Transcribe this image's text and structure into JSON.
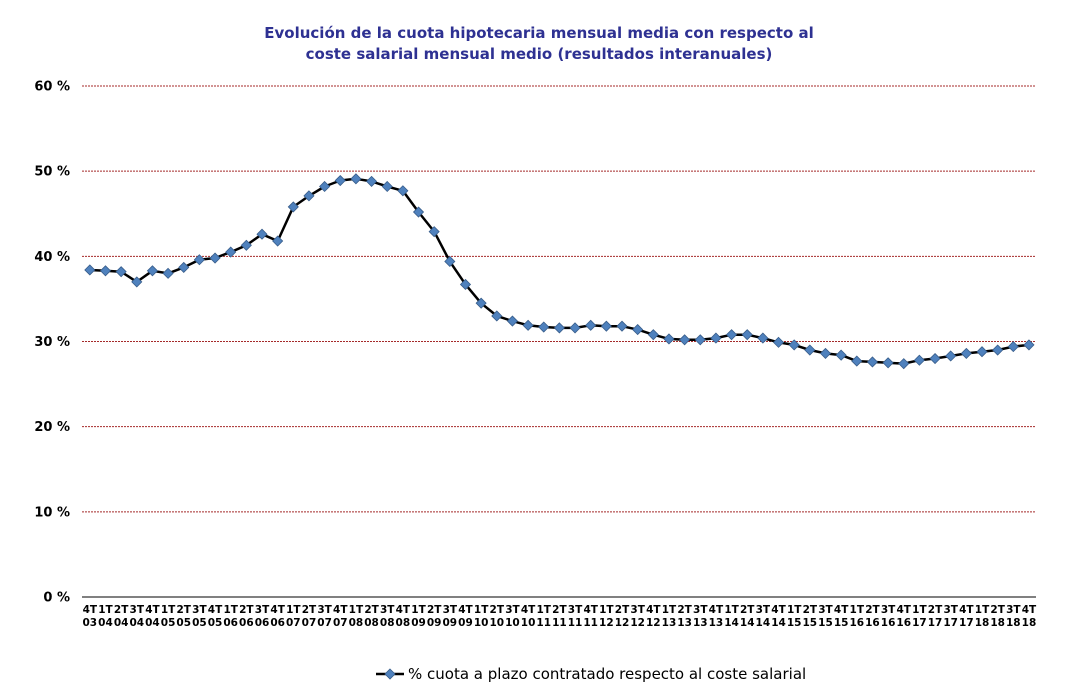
{
  "chart_data": {
    "type": "line",
    "title_lines": [
      "Evolución de la cuota hipotecaria mensual media con respecto al",
      "coste salarial mensual medio (resultados interanuales)"
    ],
    "xlabel": "",
    "ylabel": "",
    "ylim": [
      0,
      60
    ],
    "yticks": [
      0,
      10,
      20,
      30,
      40,
      50,
      60
    ],
    "ytick_labels": [
      "0 %",
      "10 %",
      "20 %",
      "30 %",
      "40 %",
      "50 %",
      "60 %"
    ],
    "grid": "horizontal dashed",
    "legend_position": "bottom",
    "categories": [
      [
        "4T",
        "03"
      ],
      [
        "1T",
        "04"
      ],
      [
        "2T",
        "04"
      ],
      [
        "3T",
        "04"
      ],
      [
        "4T",
        "04"
      ],
      [
        "1T",
        "05"
      ],
      [
        "2T",
        "05"
      ],
      [
        "3T",
        "05"
      ],
      [
        "4T",
        "05"
      ],
      [
        "1T",
        "06"
      ],
      [
        "2T",
        "06"
      ],
      [
        "3T",
        "06"
      ],
      [
        "4T",
        "06"
      ],
      [
        "1T",
        "07"
      ],
      [
        "2T",
        "07"
      ],
      [
        "3T",
        "07"
      ],
      [
        "4T",
        "07"
      ],
      [
        "1T",
        "08"
      ],
      [
        "2T",
        "08"
      ],
      [
        "3T",
        "08"
      ],
      [
        "4T",
        "08"
      ],
      [
        "1T",
        "09"
      ],
      [
        "2T",
        "09"
      ],
      [
        "3T",
        "09"
      ],
      [
        "4T",
        "09"
      ],
      [
        "1T",
        "10"
      ],
      [
        "2T",
        "10"
      ],
      [
        "3T",
        "10"
      ],
      [
        "4T",
        "10"
      ],
      [
        "1T",
        "11"
      ],
      [
        "2T",
        "11"
      ],
      [
        "3T",
        "11"
      ],
      [
        "4T",
        "11"
      ],
      [
        "1T",
        "12"
      ],
      [
        "2T",
        "12"
      ],
      [
        "3T",
        "12"
      ],
      [
        "4T",
        "12"
      ],
      [
        "1T",
        "13"
      ],
      [
        "2T",
        "13"
      ],
      [
        "3T",
        "13"
      ],
      [
        "4T",
        "13"
      ],
      [
        "1T",
        "14"
      ],
      [
        "2T",
        "14"
      ],
      [
        "3T",
        "14"
      ],
      [
        "4T",
        "14"
      ],
      [
        "1T",
        "15"
      ],
      [
        "2T",
        "15"
      ],
      [
        "3T",
        "15"
      ],
      [
        "4T",
        "15"
      ],
      [
        "1T",
        "16"
      ],
      [
        "2T",
        "16"
      ],
      [
        "3T",
        "16"
      ],
      [
        "4T",
        "16"
      ],
      [
        "1T",
        "17"
      ],
      [
        "2T",
        "17"
      ],
      [
        "3T",
        "17"
      ],
      [
        "4T",
        "17"
      ],
      [
        "1T",
        "18"
      ],
      [
        "2T",
        "18"
      ],
      [
        "3T",
        "18"
      ],
      [
        "4T",
        "18"
      ]
    ],
    "series": [
      {
        "name": "% cuota a plazo contratado respecto al coste salarial",
        "values": [
          38.4,
          38.3,
          38.2,
          37.0,
          38.3,
          38.0,
          38.7,
          39.6,
          39.8,
          40.5,
          41.3,
          42.6,
          41.8,
          45.8,
          47.1,
          48.2,
          48.9,
          49.1,
          48.8,
          48.2,
          47.7,
          45.2,
          42.9,
          39.4,
          36.7,
          34.5,
          33.0,
          32.4,
          31.9,
          31.7,
          31.6,
          31.6,
          31.9,
          31.8,
          31.8,
          31.4,
          30.8,
          30.3,
          30.2,
          30.2,
          30.4,
          30.8,
          30.8,
          30.4,
          29.9,
          29.6,
          29.0,
          28.6,
          28.4,
          27.7,
          27.6,
          27.5,
          27.4,
          27.8,
          28.0,
          28.3,
          28.6,
          28.8,
          29.0,
          29.4,
          29.6
        ]
      }
    ],
    "colors": {
      "line": "#000000",
      "marker": "#4f81bd",
      "marker_edge": "#385d8a",
      "grid": "#a52a2a",
      "title": "#2e3192"
    },
    "marker_shape": "diamond"
  }
}
